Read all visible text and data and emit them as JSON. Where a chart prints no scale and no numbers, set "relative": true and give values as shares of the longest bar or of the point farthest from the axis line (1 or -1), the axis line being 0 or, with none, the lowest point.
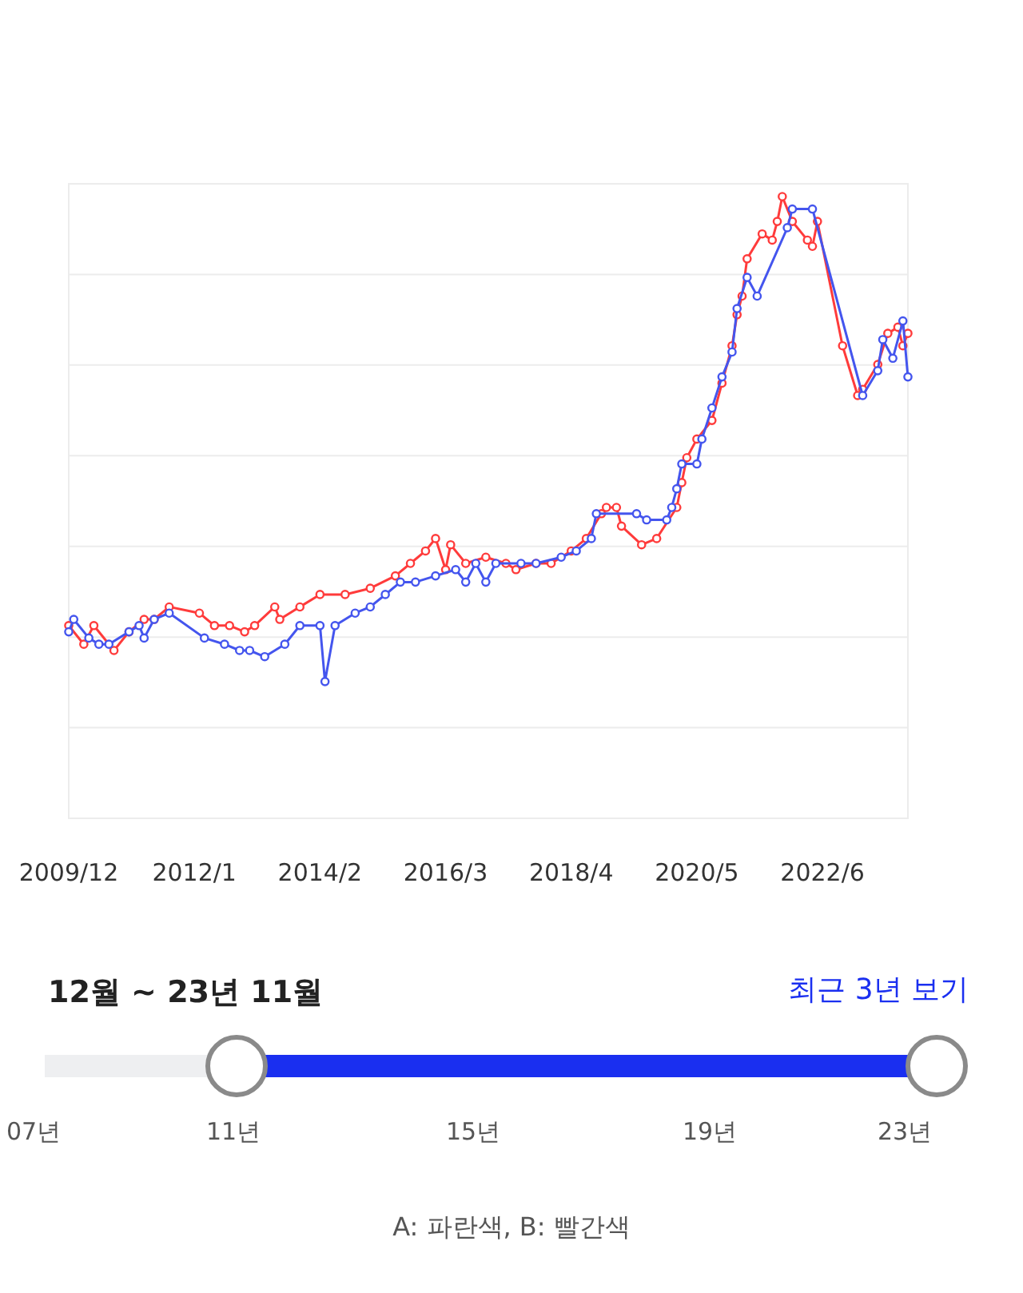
{
  "chart_data": {
    "type": "line",
    "relative": true,
    "grid": "y",
    "marker": "circle",
    "xlim": [
      "2009-12",
      "2023-11"
    ],
    "xticks": [
      {
        "value": "2009-12",
        "label": "2009/12"
      },
      {
        "value": "2012-01",
        "label": "2012/1"
      },
      {
        "value": "2014-02",
        "label": "2014/2"
      },
      {
        "value": "2016-03",
        "label": "2016/3"
      },
      {
        "value": "2018-04",
        "label": "2018/4"
      },
      {
        "value": "2020-05",
        "label": "2020/5"
      },
      {
        "value": "2022-06",
        "label": "2022/6"
      }
    ],
    "series": [
      {
        "color": "#4455ee",
        "x": [
          "2009-12",
          "2010-01",
          "2010-04",
          "2010-06",
          "2010-08",
          "2010-12",
          "2011-02",
          "2011-03",
          "2011-05",
          "2011-08",
          "2012-03",
          "2012-07",
          "2012-10",
          "2012-12",
          "2013-03",
          "2013-07",
          "2013-10",
          "2014-02",
          "2014-03",
          "2014-05",
          "2014-09",
          "2014-12",
          "2015-03",
          "2015-06",
          "2015-09",
          "2016-01",
          "2016-05",
          "2016-07",
          "2016-09",
          "2016-11",
          "2017-01",
          "2017-06",
          "2017-09",
          "2018-02",
          "2018-05",
          "2018-08",
          "2018-09",
          "2019-05",
          "2019-07",
          "2019-11",
          "2019-12",
          "2020-01",
          "2020-02",
          "2020-05",
          "2020-06",
          "2020-08",
          "2020-10",
          "2020-12",
          "2021-01",
          "2021-03",
          "2021-05",
          "2021-11",
          "2021-12",
          "2022-04",
          "2023-02",
          "2023-05",
          "2023-06",
          "2023-08",
          "2023-10",
          "2023-11"
        ],
        "values": [
          0.3,
          0.32,
          0.29,
          0.28,
          0.28,
          0.3,
          0.31,
          0.29,
          0.32,
          0.33,
          0.29,
          0.28,
          0.27,
          0.27,
          0.26,
          0.28,
          0.31,
          0.31,
          0.22,
          0.31,
          0.33,
          0.34,
          0.36,
          0.38,
          0.38,
          0.39,
          0.4,
          0.38,
          0.41,
          0.38,
          0.41,
          0.41,
          0.41,
          0.42,
          0.43,
          0.45,
          0.49,
          0.49,
          0.48,
          0.48,
          0.5,
          0.53,
          0.57,
          0.57,
          0.61,
          0.66,
          0.71,
          0.75,
          0.82,
          0.87,
          0.84,
          0.95,
          0.98,
          0.98,
          0.68,
          0.72,
          0.77,
          0.74,
          0.8,
          0.71
        ]
      },
      {
        "color": "#ff3b3b",
        "x": [
          "2009-12",
          "2010-03",
          "2010-05",
          "2010-09",
          "2010-12",
          "2011-03",
          "2011-05",
          "2011-08",
          "2012-02",
          "2012-05",
          "2012-08",
          "2012-11",
          "2013-01",
          "2013-05",
          "2013-06",
          "2013-10",
          "2014-02",
          "2014-07",
          "2014-12",
          "2015-05",
          "2015-08",
          "2015-11",
          "2016-01",
          "2016-03",
          "2016-04",
          "2016-07",
          "2016-11",
          "2017-03",
          "2017-05",
          "2017-09",
          "2017-12",
          "2018-04",
          "2018-07",
          "2018-10",
          "2018-11",
          "2019-01",
          "2019-02",
          "2019-06",
          "2019-09",
          "2020-01",
          "2020-02",
          "2020-03",
          "2020-05",
          "2020-08",
          "2020-10",
          "2020-12",
          "2021-01",
          "2021-02",
          "2021-03",
          "2021-06",
          "2021-08",
          "2021-09",
          "2021-10",
          "2021-12",
          "2022-03",
          "2022-04",
          "2022-05",
          "2022-10",
          "2023-01",
          "2023-02",
          "2023-05",
          "2023-07",
          "2023-09",
          "2023-10",
          "2023-11"
        ],
        "values": [
          0.31,
          0.28,
          0.31,
          0.27,
          0.3,
          0.32,
          0.32,
          0.34,
          0.33,
          0.31,
          0.31,
          0.3,
          0.31,
          0.34,
          0.32,
          0.34,
          0.36,
          0.36,
          0.37,
          0.39,
          0.41,
          0.43,
          0.45,
          0.4,
          0.44,
          0.41,
          0.42,
          0.41,
          0.4,
          0.41,
          0.41,
          0.43,
          0.45,
          0.49,
          0.5,
          0.5,
          0.47,
          0.44,
          0.45,
          0.5,
          0.54,
          0.58,
          0.61,
          0.64,
          0.7,
          0.76,
          0.81,
          0.84,
          0.9,
          0.94,
          0.93,
          0.96,
          1.0,
          0.96,
          0.93,
          0.92,
          0.96,
          0.76,
          0.68,
          0.69,
          0.73,
          0.78,
          0.79,
          0.76,
          0.78
        ]
      }
    ],
    "annotations": [
      "12월 ~ 23년 11월",
      "최근 3년 보기",
      "07년",
      "11년",
      "15년",
      "19년",
      "23년",
      "A: 파란색, B: 빨간색"
    ]
  }
}
